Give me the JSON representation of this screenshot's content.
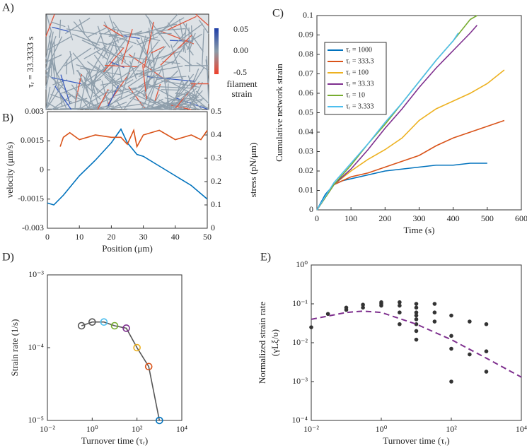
{
  "chart_data": [
    {
      "type": "image",
      "panel": "A)",
      "ylabel": "τᵣ = 33.3333 s",
      "colorbar_labels": [
        "0.05",
        "0.00",
        "-0.5"
      ],
      "colorbar_title": [
        "filament",
        "strain"
      ]
    },
    {
      "type": "line",
      "panel": "B)",
      "xlabel": "Position (μm)",
      "ylabel": "velocity (μm/s)",
      "y2label": "stress (pN/μm)",
      "xlim": [
        0,
        50
      ],
      "xticks": [
        0,
        10,
        20,
        30,
        40,
        50
      ],
      "ylim": [
        -0.003,
        0.003
      ],
      "yticks": [
        -0.003,
        -0.0015,
        0,
        0.0015,
        0.003
      ],
      "y2lim": [
        0,
        0.5
      ],
      "y2ticks": [
        0,
        0.1,
        0.2,
        0.3,
        0.4,
        0.5
      ],
      "series": [
        {
          "color": "#0072bd",
          "x": [
            0,
            2,
            5,
            10,
            15,
            20,
            23,
            25,
            28,
            30,
            35,
            40,
            45,
            50
          ],
          "values": [
            -0.0017,
            -0.0018,
            -0.0013,
            -0.0003,
            0.0005,
            0.0014,
            0.0021,
            0.0014,
            0.0008,
            0.0007,
            0.0002,
            -0.0003,
            -0.0008,
            -0.0015
          ]
        },
        {
          "color": "#d95319",
          "axis": "y2",
          "x": [
            4,
            5,
            7,
            10,
            15,
            20,
            23,
            25,
            27,
            28,
            30,
            35,
            40,
            45,
            48,
            50
          ],
          "values": [
            0.35,
            0.39,
            0.41,
            0.38,
            0.4,
            0.39,
            0.39,
            0.36,
            0.42,
            0.35,
            0.4,
            0.42,
            0.38,
            0.4,
            0.38,
            0.42
          ]
        }
      ]
    },
    {
      "type": "line",
      "panel": "C)",
      "xlabel": "Time (s)",
      "ylabel": "Cumulative network strain",
      "xlim": [
        0,
        600
      ],
      "xticks": [
        0,
        100,
        200,
        300,
        400,
        500,
        600
      ],
      "ylim": [
        0,
        0.1
      ],
      "yticks": [
        0,
        0.01,
        0.02,
        0.03,
        0.04,
        0.05,
        0.06,
        0.07,
        0.08,
        0.09,
        0.1
      ],
      "legend": "upper-left",
      "series": [
        {
          "name": "τᵣ = 1000",
          "color": "#0072bd",
          "x": [
            0,
            25,
            50,
            75,
            100,
            150,
            200,
            250,
            300,
            350,
            400,
            450,
            500
          ],
          "values": [
            0,
            0.008,
            0.013,
            0.015,
            0.016,
            0.018,
            0.02,
            0.021,
            0.022,
            0.023,
            0.023,
            0.024,
            0.024
          ]
        },
        {
          "name": "τᵣ = 333.3",
          "color": "#d95319",
          "x": [
            0,
            50,
            100,
            150,
            200,
            250,
            300,
            350,
            400,
            450,
            500,
            550
          ],
          "values": [
            0,
            0.013,
            0.017,
            0.019,
            0.022,
            0.025,
            0.028,
            0.033,
            0.037,
            0.04,
            0.043,
            0.046
          ]
        },
        {
          "name": "τᵣ = 100",
          "color": "#edb120",
          "x": [
            0,
            50,
            100,
            150,
            200,
            250,
            300,
            350,
            400,
            450,
            500,
            550
          ],
          "values": [
            0,
            0.013,
            0.02,
            0.026,
            0.031,
            0.037,
            0.046,
            0.052,
            0.056,
            0.06,
            0.065,
            0.072
          ]
        },
        {
          "name": "τᵣ = 33.33",
          "color": "#7e2f8e",
          "x": [
            0,
            50,
            100,
            150,
            200,
            250,
            300,
            350,
            400,
            450,
            470
          ],
          "values": [
            0,
            0.013,
            0.021,
            0.031,
            0.042,
            0.052,
            0.063,
            0.073,
            0.082,
            0.091,
            0.095
          ]
        },
        {
          "name": "τᵣ = 10",
          "color": "#77ac30",
          "x": [
            0,
            50,
            100,
            150,
            200,
            250,
            300,
            350,
            400,
            450,
            470
          ],
          "values": [
            0,
            0.013,
            0.023,
            0.034,
            0.044,
            0.055,
            0.066,
            0.077,
            0.087,
            0.098,
            0.1
          ]
        },
        {
          "name": "τᵣ = 3.333",
          "color": "#4dbeee",
          "x": [
            0,
            50,
            100,
            150,
            200,
            250,
            300,
            350,
            400,
            415
          ],
          "values": [
            0,
            0.014,
            0.024,
            0.034,
            0.045,
            0.055,
            0.066,
            0.077,
            0.087,
            0.091
          ]
        }
      ]
    },
    {
      "type": "line",
      "panel": "D)",
      "xlabel": "Turnover time (τᵣ)",
      "ylabel": "Strain rate (1/s)",
      "xlog": true,
      "ylog": true,
      "xlim": [
        0.01,
        10000
      ],
      "xticks": [
        {
          "value": 0.01,
          "label": "10⁻²"
        },
        {
          "value": 1,
          "label": "10⁰"
        },
        {
          "value": 100,
          "label": "10²"
        },
        {
          "value": 10000,
          "label": "10⁴"
        }
      ],
      "ylim": [
        1e-05,
        0.001
      ],
      "yticks": [
        {
          "value": 1e-05,
          "label": "10⁻⁵"
        },
        {
          "value": 0.0001,
          "label": "10⁻⁴"
        },
        {
          "value": 0.001,
          "label": "10⁻³"
        }
      ],
      "series": [
        {
          "color": "#555555",
          "x": [
            0.3333,
            1,
            3.333,
            10,
            33.33,
            100,
            333.3,
            1000
          ],
          "values": [
            0.0002,
            0.000225,
            0.000225,
            0.0002,
            0.000185,
            0.0001,
            5.5e-05,
            1e-05
          ],
          "marker_colors": [
            "#555555",
            "#555555",
            "#4dbeee",
            "#77ac30",
            "#7e2f8e",
            "#edb120",
            "#d95319",
            "#0072bd"
          ]
        }
      ]
    },
    {
      "type": "scatter",
      "panel": "E)",
      "xlabel": "Turnover time (τᵣ)",
      "ylabel": "Normalized strain rate",
      "ylabel2": "(γLξ/υ)",
      "xlog": true,
      "ylog": true,
      "xlim": [
        0.01,
        10000
      ],
      "xticks": [
        {
          "value": 0.01,
          "label": "10⁻²"
        },
        {
          "value": 1,
          "label": "10⁰"
        },
        {
          "value": 100,
          "label": "10²"
        },
        {
          "value": 10000,
          "label": "10⁴"
        }
      ],
      "ylim": [
        0.0001,
        1
      ],
      "yticks": [
        {
          "value": 0.0001,
          "label": "10⁻⁴"
        },
        {
          "value": 0.001,
          "label": "10⁻³"
        },
        {
          "value": 0.01,
          "label": "10⁻²"
        },
        {
          "value": 0.1,
          "label": "10⁻¹"
        },
        {
          "value": 1,
          "label": "10⁰"
        }
      ],
      "series": [
        {
          "color": "#333333",
          "x": [
            0.01,
            0.03,
            0.1,
            0.1,
            0.3,
            0.3,
            1,
            1,
            1,
            3.333,
            3.333,
            3.333,
            3.333,
            10,
            10,
            10,
            10,
            10,
            10,
            10,
            10,
            33.33,
            33.33,
            33.33,
            100,
            100,
            100,
            100,
            333.3,
            333.3,
            1000,
            1000,
            1000
          ],
          "values": [
            0.025,
            0.055,
            0.07,
            0.08,
            0.08,
            0.095,
            0.09,
            0.1,
            0.11,
            0.11,
            0.09,
            0.06,
            0.03,
            0.1,
            0.08,
            0.06,
            0.05,
            0.04,
            0.03,
            0.02,
            0.012,
            0.1,
            0.06,
            0.035,
            0.05,
            0.015,
            0.007,
            0.001,
            0.035,
            0.005,
            0.03,
            0.006,
            0.0018
          ]
        },
        {
          "color": "#7e2f8e",
          "dashed": true,
          "x": [
            0.01,
            0.1,
            0.3,
            1,
            10,
            100,
            1000,
            10000
          ],
          "values": [
            0.04,
            0.06,
            0.065,
            0.06,
            0.03,
            0.012,
            0.004,
            0.0013
          ]
        }
      ]
    }
  ]
}
